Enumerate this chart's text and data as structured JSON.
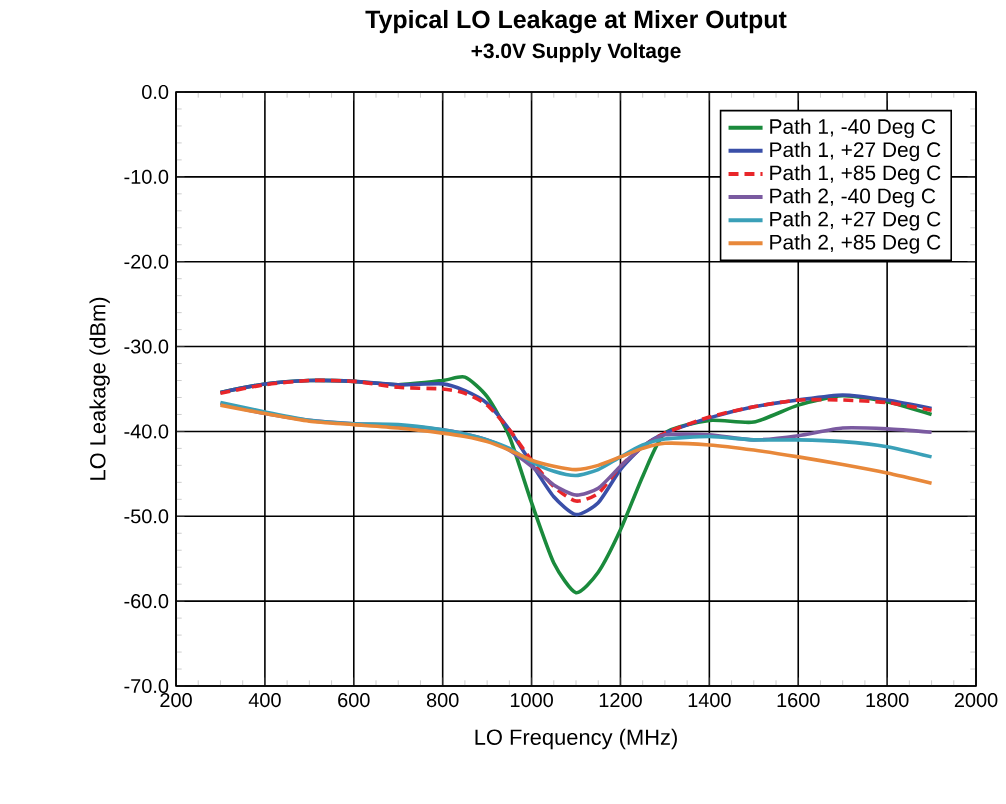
{
  "chart_data": {
    "type": "line",
    "title": "Typical LO Leakage at Mixer Output",
    "subtitle": "+3.0V Supply Voltage",
    "xlabel": "LO Frequency (MHz)",
    "ylabel": "LO Leakage (dBm)",
    "x": [
      300,
      400,
      500,
      600,
      700,
      800,
      850,
      900,
      950,
      1000,
      1050,
      1100,
      1150,
      1200,
      1250,
      1300,
      1400,
      1500,
      1600,
      1700,
      1800,
      1900
    ],
    "series": [
      {
        "name": "Path 1, -40 Deg C",
        "color": "#1a8a3c",
        "values": [
          -35.4,
          -34.4,
          -34.0,
          -34.1,
          -34.5,
          -34.0,
          -33.6,
          -35.9,
          -40.6,
          -48.4,
          -55.5,
          -59.0,
          -56.6,
          -51.6,
          -45.3,
          -40.2,
          -38.7,
          -38.9,
          -36.9,
          -35.8,
          -36.5,
          -38.0
        ]
      },
      {
        "name": "Path 1, +27 Deg C",
        "color": "#3a4fa8",
        "values": [
          -35.4,
          -34.4,
          -34.0,
          -34.1,
          -34.5,
          -34.4,
          -35.2,
          -36.7,
          -39.8,
          -43.8,
          -47.7,
          -49.8,
          -48.4,
          -44.5,
          -41.8,
          -40.2,
          -38.4,
          -37.1,
          -36.3,
          -35.7,
          -36.3,
          -37.3
        ]
      },
      {
        "name": "Path 1, +85 Deg C",
        "color": "#e8262a",
        "line_style": "dashed",
        "values": [
          -35.5,
          -34.5,
          -34.0,
          -34.1,
          -34.8,
          -35.0,
          -35.5,
          -36.9,
          -39.8,
          -43.4,
          -46.5,
          -48.2,
          -47.3,
          -44.1,
          -41.8,
          -40.2,
          -38.3,
          -37.1,
          -36.3,
          -36.3,
          -36.6,
          -37.5
        ]
      },
      {
        "name": "Path 2, -40 Deg C",
        "color": "#7a5aa0",
        "values": [
          -36.7,
          -37.9,
          -38.7,
          -39.1,
          -39.3,
          -39.8,
          -40.3,
          -41.0,
          -42.2,
          -44.1,
          -46.3,
          -47.5,
          -46.7,
          -44.1,
          -41.8,
          -40.4,
          -40.4,
          -41.0,
          -40.5,
          -39.6,
          -39.7,
          -40.1
        ]
      },
      {
        "name": "Path 2, +27 Deg C",
        "color": "#3aa0b8",
        "values": [
          -36.6,
          -37.7,
          -38.7,
          -39.1,
          -39.2,
          -39.8,
          -40.3,
          -41.0,
          -42.0,
          -43.6,
          -44.7,
          -45.2,
          -44.5,
          -43.0,
          -41.6,
          -40.9,
          -40.6,
          -41.0,
          -41.0,
          -41.2,
          -41.8,
          -43.0
        ]
      },
      {
        "name": "Path 2, +85 Deg C",
        "color": "#e8883a",
        "values": [
          -36.9,
          -37.9,
          -38.8,
          -39.2,
          -39.6,
          -40.2,
          -40.6,
          -41.2,
          -42.2,
          -43.4,
          -44.1,
          -44.5,
          -44.0,
          -43.0,
          -42.0,
          -41.4,
          -41.6,
          -42.2,
          -43.0,
          -43.9,
          -44.9,
          -46.1
        ]
      }
    ],
    "xlim": [
      200,
      2000
    ],
    "xticks": [
      200,
      400,
      600,
      800,
      1000,
      1200,
      1400,
      1600,
      1800,
      2000
    ],
    "ylim": [
      -70,
      0
    ],
    "yticks": [
      {
        "value": 0,
        "label": "0.0"
      },
      {
        "value": -10,
        "label": "-10.0"
      },
      {
        "value": -20,
        "label": "-20.0"
      },
      {
        "value": -30,
        "label": "-30.0"
      },
      {
        "value": -40,
        "label": "-40.0"
      },
      {
        "value": -50,
        "label": "-50.0"
      },
      {
        "value": -60,
        "label": "-60.0"
      },
      {
        "value": -70,
        "label": "-70.0"
      }
    ],
    "grid": true,
    "legend": "top right",
    "line_style": "solid",
    "marker": "none"
  }
}
